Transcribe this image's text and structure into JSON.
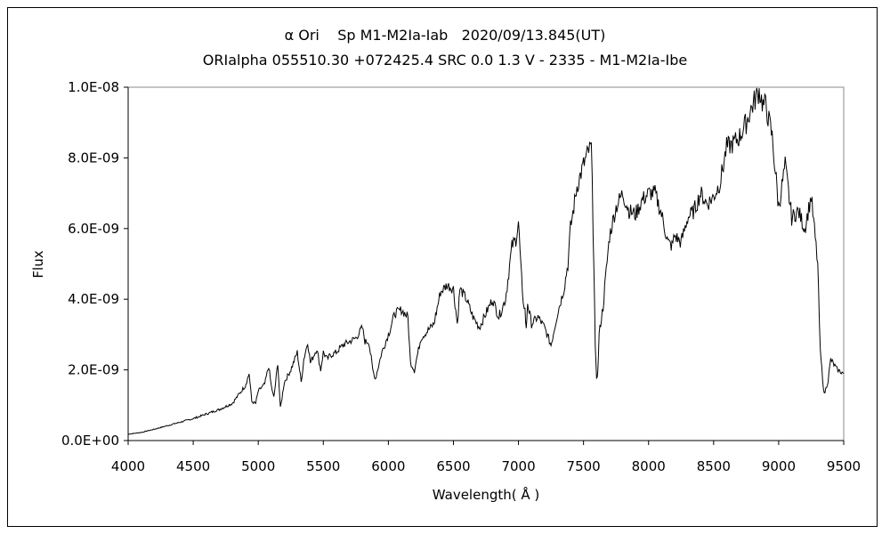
{
  "chart_data": {
    "type": "line",
    "title": "α Ori    Sp M1-M2Ia-Iab   2020/09/13.845(UT)",
    "subtitle": "ORIalpha 055510.30 +072425.4 SRC 0.0 1.3 V - 2335 - M1-M2Ia-Ibe",
    "xlabel": "Wavelength( Å )",
    "ylabel": "Flux",
    "xlim": [
      4000,
      9500
    ],
    "ylim": [
      0,
      1e-08
    ],
    "x_ticks": [
      "4000",
      "4500",
      "5000",
      "5500",
      "6000",
      "6500",
      "7000",
      "7500",
      "8000",
      "8500",
      "9000",
      "9500"
    ],
    "y_ticks": [
      "0.0E+00",
      "2.0E-09",
      "4.0E-09",
      "6.0E-09",
      "8.0E-09",
      "1.0E-08"
    ],
    "grid": false,
    "legend": "none",
    "line_color": "#000000",
    "series": [
      {
        "x": [
          4000,
          4100,
          4200,
          4300,
          4400,
          4500,
          4600,
          4700,
          4800,
          4850,
          4900,
          4930,
          4950,
          4980,
          5000,
          5050,
          5080,
          5100,
          5120,
          5150,
          5170,
          5200,
          5250,
          5300,
          5330,
          5350,
          5380,
          5400,
          5450,
          5480,
          5500,
          5530,
          5550,
          5600,
          5650,
          5700,
          5750,
          5800,
          5820,
          5850,
          5880,
          5900,
          5950,
          6000,
          6050,
          6100,
          6150,
          6170,
          6200,
          6250,
          6300,
          6350,
          6400,
          6450,
          6500,
          6530,
          6550,
          6600,
          6650,
          6700,
          6750,
          6800,
          6850,
          6900,
          6950,
          6980,
          7000,
          7030,
          7050,
          7060,
          7070,
          7100,
          7150,
          7200,
          7250,
          7300,
          7350,
          7380,
          7400,
          7450,
          7500,
          7540,
          7560,
          7580,
          7590,
          7600,
          7610,
          7620,
          7650,
          7700,
          7750,
          7800,
          7850,
          7900,
          7950,
          8000,
          8050,
          8100,
          8150,
          8180,
          8200,
          8250,
          8300,
          8350,
          8400,
          8450,
          8500,
          8550,
          8600,
          8650,
          8700,
          8750,
          8800,
          8850,
          8880,
          8900,
          8950,
          9000,
          9050,
          9100,
          9150,
          9200,
          9250,
          9300,
          9320,
          9350,
          9380,
          9400,
          9450,
          9500
        ],
        "y": [
          1.8e-10,
          2.3e-10,
          3.2e-10,
          4.2e-10,
          5.2e-10,
          6.2e-10,
          7.5e-10,
          8.8e-10,
          1.05e-09,
          1.3e-09,
          1.55e-09,
          1.9e-09,
          1.1e-09,
          1.05e-09,
          1.4e-09,
          1.6e-09,
          2.1e-09,
          1.55e-09,
          1.2e-09,
          2.2e-09,
          9e-10,
          1.65e-09,
          2e-09,
          2.5e-09,
          1.65e-09,
          2.3e-09,
          2.8e-09,
          2.2e-09,
          2.6e-09,
          2e-09,
          2.5e-09,
          2.3e-09,
          2.4e-09,
          2.5e-09,
          2.7e-09,
          2.8e-09,
          2.9e-09,
          3.2e-09,
          2.8e-09,
          2.8e-09,
          2e-09,
          1.75e-09,
          2.5e-09,
          3e-09,
          3.6e-09,
          3.7e-09,
          3.5e-09,
          2.2e-09,
          2e-09,
          2.9e-09,
          3.1e-09,
          3.3e-09,
          4.2e-09,
          4.4e-09,
          4.3e-09,
          3.3e-09,
          4.3e-09,
          4e-09,
          3.5e-09,
          3.2e-09,
          3.6e-09,
          4e-09,
          3.5e-09,
          4e-09,
          5.5e-09,
          5.7e-09,
          6.2e-09,
          4.1e-09,
          3.7e-09,
          3.1e-09,
          3.9e-09,
          3.3e-09,
          3.5e-09,
          3.2e-09,
          2.7e-09,
          3.6e-09,
          4.3e-09,
          5e-09,
          6e-09,
          7.2e-09,
          7.8e-09,
          8.2e-09,
          8.3e-09,
          5e-09,
          2.6e-09,
          1.8e-09,
          1.9e-09,
          3e-09,
          3.8e-09,
          5.8e-09,
          6.6e-09,
          7e-09,
          6.5e-09,
          6.4e-09,
          6.8e-09,
          7e-09,
          7e-09,
          6.4e-09,
          5.6e-09,
          5.5e-09,
          5.8e-09,
          5.6e-09,
          6.3e-09,
          6.5e-09,
          7e-09,
          6.7e-09,
          6.9e-09,
          7.3e-09,
          8.3e-09,
          8.4e-09,
          8.6e-09,
          9e-09,
          9.5e-09,
          9.9e-09,
          9.5e-09,
          9.5e-09,
          8.6e-09,
          6.6e-09,
          7.8e-09,
          6.3e-09,
          6.5e-09,
          6e-09,
          6.9e-09,
          5e-09,
          2.5e-09,
          1.3e-09,
          1.7e-09,
          2.3e-09,
          2e-09,
          1.9e-09
        ]
      }
    ]
  }
}
